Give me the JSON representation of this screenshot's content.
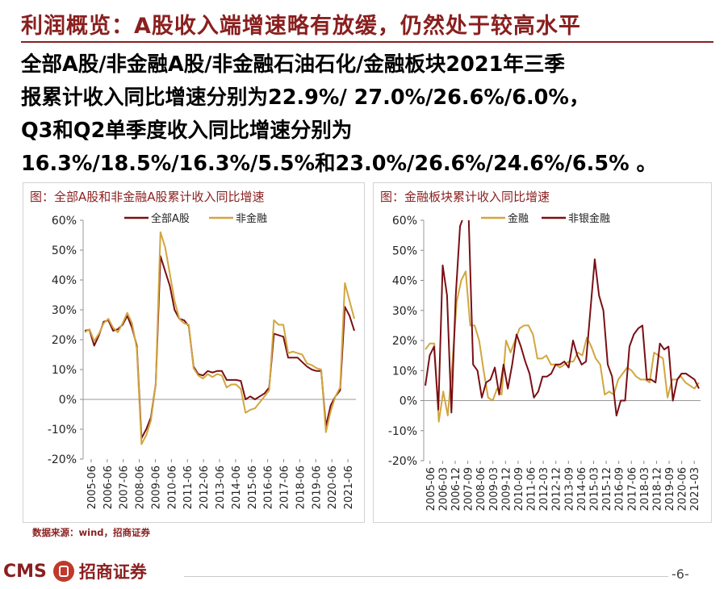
{
  "header": {
    "title": "利润概览：A股收入端增速略有放缓，仍然处于较高水平",
    "summary_lines": [
      "全部A股/非金融A股/非金融石油石化/金融板块2021年三季",
      "报累计收入同比增速分别为22.9%/ 27.0%/26.6%/6.0%，",
      "Q3和Q2单季度收入同比增速分别为",
      "16.3%/18.5%/16.3%/5.5%和23.0%/26.6%/24.6%/6.5% 。"
    ]
  },
  "colors": {
    "dark_red": "#7a0f14",
    "gold": "#d1a63f",
    "accent": "#8a1f1f"
  },
  "chart_data": [
    {
      "type": "line",
      "title": "图：全部A股和非金融A股累计收入同比增速",
      "x_labels": [
        "2005-06",
        "2006-06",
        "2007-06",
        "2008-06",
        "2009-06",
        "2010-06",
        "2011-06",
        "2012-06",
        "2013-06",
        "2014-06",
        "2015-06",
        "2016-06",
        "2017-06",
        "2018-06",
        "2019-06",
        "2020-06",
        "2021-06"
      ],
      "ylim": [
        -20,
        60
      ],
      "y_ticks": [
        "60%",
        "50%",
        "40%",
        "30%",
        "20%",
        "10%",
        "0%",
        "-10%",
        "-20%"
      ],
      "legend": [
        "全部A股",
        "非金融"
      ],
      "series": [
        {
          "name": "全部A股",
          "color": "#7a0f14",
          "values": [
            23,
            23.3,
            18,
            21.5,
            26,
            26.5,
            23,
            23.5,
            25,
            28,
            24,
            18,
            -13,
            -10,
            -6,
            5,
            48,
            43,
            38,
            30,
            27,
            26.5,
            24.5,
            11,
            8.5,
            8,
            9.5,
            9,
            9.5,
            9.5,
            6.5,
            6.5,
            6.5,
            6.2,
            0,
            1,
            0,
            1,
            2,
            4,
            22,
            21.5,
            21,
            14,
            14,
            14,
            12.5,
            11,
            10,
            9.5,
            9.5,
            -9,
            -2,
            1,
            3,
            31,
            28,
            23
          ]
        },
        {
          "name": "非金融",
          "color": "#d1a63f",
          "values": [
            22.5,
            23.5,
            19.5,
            22,
            25.5,
            27,
            24,
            22.5,
            25.5,
            29,
            25.5,
            17,
            -15,
            -12,
            -7,
            5,
            56,
            51,
            42,
            33,
            27,
            25.5,
            25,
            10.5,
            8,
            7,
            8.5,
            7.5,
            8.5,
            8,
            4,
            5,
            5,
            3.5,
            -4.5,
            -3.5,
            -3,
            -1,
            1,
            3,
            26.5,
            25,
            25,
            15.5,
            16,
            15.5,
            15,
            12,
            11.5,
            10.5,
            10,
            -11,
            -4,
            1,
            4,
            39,
            33,
            27
          ]
        }
      ]
    },
    {
      "type": "line",
      "title": "图：金融板块累计收入同比增速",
      "x_labels": [
        "2005-06",
        "2006-03",
        "2006-12",
        "2007-09",
        "2008-06",
        "2009-03",
        "2009-12",
        "2010-09",
        "2011-06",
        "2012-03",
        "2012-12",
        "2013-09",
        "2014-06",
        "2015-03",
        "2015-12",
        "2016-09",
        "2017-06",
        "2018-03",
        "2018-12",
        "2019-09",
        "2020-06",
        "2021-03"
      ],
      "ylim": [
        -20,
        60
      ],
      "y_ticks": [
        "60%",
        "50%",
        "40%",
        "30%",
        "20%",
        "10%",
        "0%",
        "-10%",
        "-20%"
      ],
      "legend": [
        "金融",
        "非银金融"
      ],
      "series": [
        {
          "name": "金融",
          "color": "#d1a63f",
          "values": [
            17,
            19,
            19,
            -7,
            3,
            -5,
            12,
            33,
            40,
            43,
            25,
            25,
            20,
            10,
            1,
            0,
            4,
            2,
            20,
            16,
            20,
            24,
            25,
            25,
            22,
            14,
            14,
            15,
            12,
            12,
            11,
            12,
            13,
            13,
            16,
            15,
            21,
            18,
            14,
            12,
            2,
            3,
            2,
            7,
            9,
            11,
            10,
            8,
            7,
            7,
            6,
            16,
            15,
            14,
            1,
            7,
            7,
            8,
            6,
            5,
            4,
            6
          ]
        },
        {
          "name": "非银金融",
          "color": "#7a0f14",
          "values": [
            5,
            15,
            18,
            -3,
            45,
            35,
            -4,
            35,
            58,
            62,
            60,
            12,
            10,
            1,
            6,
            7,
            11,
            2,
            12,
            4,
            12,
            22,
            18,
            13,
            9,
            1,
            3,
            8,
            8,
            9,
            12,
            12,
            13,
            11,
            20,
            15,
            12,
            13,
            30,
            47,
            35,
            30,
            12,
            8,
            -5,
            0,
            0,
            18,
            22,
            24,
            25,
            7,
            7,
            6,
            19,
            17,
            18,
            0,
            7,
            9,
            9,
            8,
            7,
            4
          ]
        }
      ]
    }
  ],
  "source_text": "数据来源：wind，招商证券",
  "footer": {
    "logo_text": "CMS",
    "brand": "招商证券",
    "page": "-6-"
  }
}
